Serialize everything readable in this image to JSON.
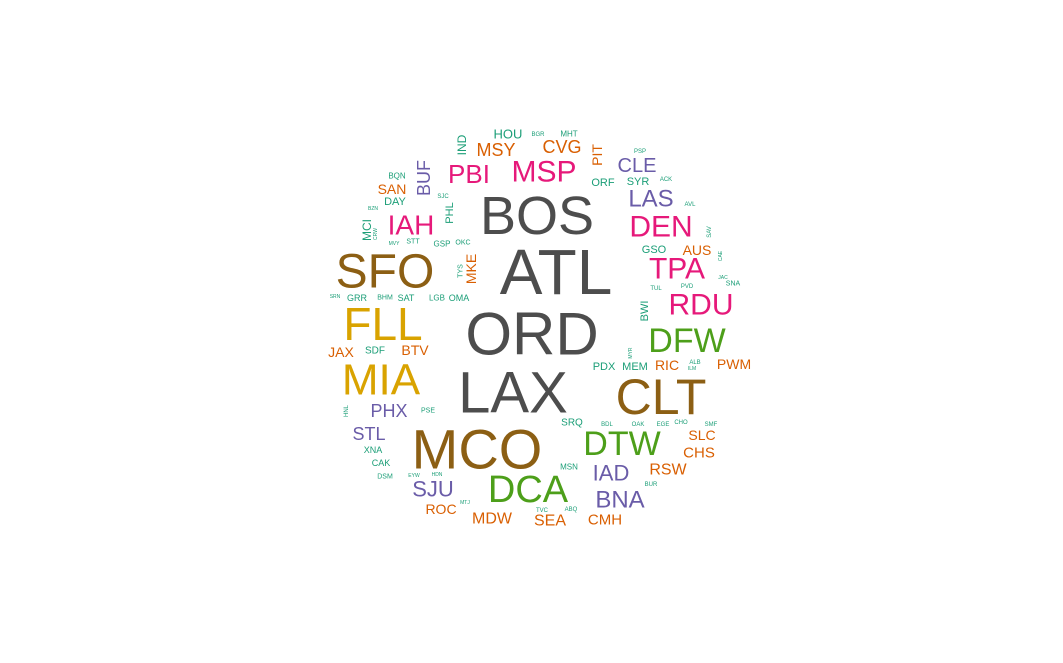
{
  "chart_data": {
    "type": "wordcloud",
    "title": "",
    "words": [
      {
        "text": "ATL",
        "size": 64,
        "color": "#4d4d4d"
      },
      {
        "text": "ORD",
        "size": 60,
        "color": "#4d4d4d"
      },
      {
        "text": "LAX",
        "size": 58,
        "color": "#4d4d4d"
      },
      {
        "text": "BOS",
        "size": 54,
        "color": "#4d4d4d"
      },
      {
        "text": "MCO",
        "size": 56,
        "color": "#8c5f14"
      },
      {
        "text": "CLT",
        "size": 50,
        "color": "#8c5f14"
      },
      {
        "text": "SFO",
        "size": 48,
        "color": "#8c5f14"
      },
      {
        "text": "FLL",
        "size": 46,
        "color": "#d9a300"
      },
      {
        "text": "MIA",
        "size": 44,
        "color": "#d9a300"
      },
      {
        "text": "DCA",
        "size": 38,
        "color": "#4d9f1a"
      },
      {
        "text": "DTW",
        "size": 34,
        "color": "#4d9f1a"
      },
      {
        "text": "DFW",
        "size": 34,
        "color": "#4d9f1a"
      },
      {
        "text": "MSP",
        "size": 30,
        "color": "#e6197a"
      },
      {
        "text": "RDU",
        "size": 30,
        "color": "#e6197a"
      },
      {
        "text": "TPA",
        "size": 30,
        "color": "#e6197a"
      },
      {
        "text": "DEN",
        "size": 30,
        "color": "#e6197a"
      },
      {
        "text": "IAH",
        "size": 28,
        "color": "#e6197a"
      },
      {
        "text": "PBI",
        "size": 26,
        "color": "#e6197a"
      },
      {
        "text": "LAS",
        "size": 24,
        "color": "#6a5ca8"
      },
      {
        "text": "BNA",
        "size": 24,
        "color": "#6a5ca8"
      },
      {
        "text": "IAD",
        "size": 22,
        "color": "#6a5ca8"
      },
      {
        "text": "SJU",
        "size": 22,
        "color": "#6a5ca8"
      },
      {
        "text": "CLE",
        "size": 20,
        "color": "#6a5ca8"
      },
      {
        "text": "PHX",
        "size": 18,
        "color": "#6a5ca8"
      },
      {
        "text": "STL",
        "size": 18,
        "color": "#6a5ca8"
      },
      {
        "text": "BUF",
        "size": 18,
        "color": "#6a5ca8"
      },
      {
        "text": "MKE",
        "size": 14,
        "color": "#d95f02"
      },
      {
        "text": "CVG",
        "size": 18,
        "color": "#d95f02"
      },
      {
        "text": "MSY",
        "size": 18,
        "color": "#d95f02"
      },
      {
        "text": "RSW",
        "size": 16,
        "color": "#d95f02"
      },
      {
        "text": "MDW",
        "size": 16,
        "color": "#d95f02"
      },
      {
        "text": "SEA",
        "size": 16,
        "color": "#d95f02"
      },
      {
        "text": "CMH",
        "size": 15,
        "color": "#d95f02"
      },
      {
        "text": "CHS",
        "size": 15,
        "color": "#d95f02"
      },
      {
        "text": "AUS",
        "size": 14,
        "color": "#d95f02"
      },
      {
        "text": "PWM",
        "size": 14,
        "color": "#d95f02"
      },
      {
        "text": "RIC",
        "size": 14,
        "color": "#d95f02"
      },
      {
        "text": "SLC",
        "size": 14,
        "color": "#d95f02"
      },
      {
        "text": "BTV",
        "size": 14,
        "color": "#d95f02"
      },
      {
        "text": "JAX",
        "size": 14,
        "color": "#d95f02"
      },
      {
        "text": "SAN",
        "size": 14,
        "color": "#d95f02"
      },
      {
        "text": "ROC",
        "size": 14,
        "color": "#d95f02"
      },
      {
        "text": "PIT",
        "size": 14,
        "color": "#d95f02"
      },
      {
        "text": "HOU",
        "size": 13,
        "color": "#1b9e77"
      },
      {
        "text": "IND",
        "size": 12,
        "color": "#1b9e77"
      },
      {
        "text": "MCI",
        "size": 12,
        "color": "#1b9e77"
      },
      {
        "text": "PHL",
        "size": 11,
        "color": "#1b9e77"
      },
      {
        "text": "SYR",
        "size": 11,
        "color": "#1b9e77"
      },
      {
        "text": "ORF",
        "size": 11,
        "color": "#1b9e77"
      },
      {
        "text": "MEM",
        "size": 11,
        "color": "#1b9e77"
      },
      {
        "text": "PDX",
        "size": 11,
        "color": "#1b9e77"
      },
      {
        "text": "GSO",
        "size": 11,
        "color": "#1b9e77"
      },
      {
        "text": "SRQ",
        "size": 10,
        "color": "#1b9e77"
      },
      {
        "text": "BWI",
        "size": 11,
        "color": "#1b9e77"
      },
      {
        "text": "DAY",
        "size": 11,
        "color": "#1b9e77"
      },
      {
        "text": "MHT",
        "size": 8,
        "color": "#1b9e77"
      },
      {
        "text": "SDF",
        "size": 10,
        "color": "#1b9e77"
      },
      {
        "text": "XNA",
        "size": 9,
        "color": "#1b9e77"
      },
      {
        "text": "CAK",
        "size": 9,
        "color": "#1b9e77"
      },
      {
        "text": "GRR",
        "size": 9,
        "color": "#1b9e77"
      },
      {
        "text": "SAT",
        "size": 9,
        "color": "#1b9e77"
      },
      {
        "text": "OMA",
        "size": 9,
        "color": "#1b9e77"
      },
      {
        "text": "LGB",
        "size": 8,
        "color": "#1b9e77"
      },
      {
        "text": "GSP",
        "size": 8,
        "color": "#1b9e77"
      },
      {
        "text": "MSN",
        "size": 8,
        "color": "#1b9e77"
      },
      {
        "text": "BQN",
        "size": 8,
        "color": "#1b9e77"
      },
      {
        "text": "STT",
        "size": 7,
        "color": "#1b9e77"
      },
      {
        "text": "BHM",
        "size": 7,
        "color": "#1b9e77"
      },
      {
        "text": "DSM",
        "size": 7,
        "color": "#1b9e77"
      },
      {
        "text": "PSE",
        "size": 7,
        "color": "#1b9e77"
      },
      {
        "text": "TYS",
        "size": 7,
        "color": "#1b9e77"
      },
      {
        "text": "OKC",
        "size": 7,
        "color": "#1b9e77"
      },
      {
        "text": "SNA",
        "size": 7,
        "color": "#1b9e77"
      },
      {
        "text": "TUL",
        "size": 6,
        "color": "#1b9e77"
      },
      {
        "text": "PVD",
        "size": 6,
        "color": "#1b9e77"
      },
      {
        "text": "BDL",
        "size": 6,
        "color": "#1b9e77"
      },
      {
        "text": "OAK",
        "size": 6,
        "color": "#1b9e77"
      },
      {
        "text": "EGE",
        "size": 6,
        "color": "#1b9e77"
      },
      {
        "text": "SMF",
        "size": 6,
        "color": "#1b9e77"
      },
      {
        "text": "CHO",
        "size": 6,
        "color": "#1b9e77"
      },
      {
        "text": "BUR",
        "size": 6,
        "color": "#1b9e77"
      },
      {
        "text": "TVC",
        "size": 6,
        "color": "#1b9e77"
      },
      {
        "text": "ABQ",
        "size": 6,
        "color": "#1b9e77"
      },
      {
        "text": "AVL",
        "size": 6,
        "color": "#1b9e77"
      },
      {
        "text": "ACK",
        "size": 6,
        "color": "#1b9e77"
      },
      {
        "text": "PSP",
        "size": 6,
        "color": "#1b9e77"
      },
      {
        "text": "BGR",
        "size": 6,
        "color": "#1b9e77"
      },
      {
        "text": "SJC",
        "size": 6,
        "color": "#1b9e77"
      },
      {
        "text": "MVY",
        "size": 5,
        "color": "#1b9e77"
      },
      {
        "text": "SAV",
        "size": 6,
        "color": "#1b9e77"
      },
      {
        "text": "ALB",
        "size": 6,
        "color": "#1b9e77"
      },
      {
        "text": "ILM",
        "size": 5,
        "color": "#1b9e77"
      },
      {
        "text": "MYR",
        "size": 5,
        "color": "#1b9e77"
      },
      {
        "text": "CAE",
        "size": 5,
        "color": "#1b9e77"
      },
      {
        "text": "JAC",
        "size": 5,
        "color": "#1b9e77"
      },
      {
        "text": "HNL",
        "size": 6,
        "color": "#1b9e77"
      },
      {
        "text": "EYW",
        "size": 5,
        "color": "#1b9e77"
      },
      {
        "text": "HDN",
        "size": 5,
        "color": "#1b9e77"
      },
      {
        "text": "MTJ",
        "size": 5,
        "color": "#1b9e77"
      },
      {
        "text": "BZN",
        "size": 5,
        "color": "#1b9e77"
      },
      {
        "text": "CRW",
        "size": 5,
        "color": "#1b9e77"
      },
      {
        "text": "SRN",
        "size": 5,
        "color": "#1b9e77"
      }
    ]
  }
}
